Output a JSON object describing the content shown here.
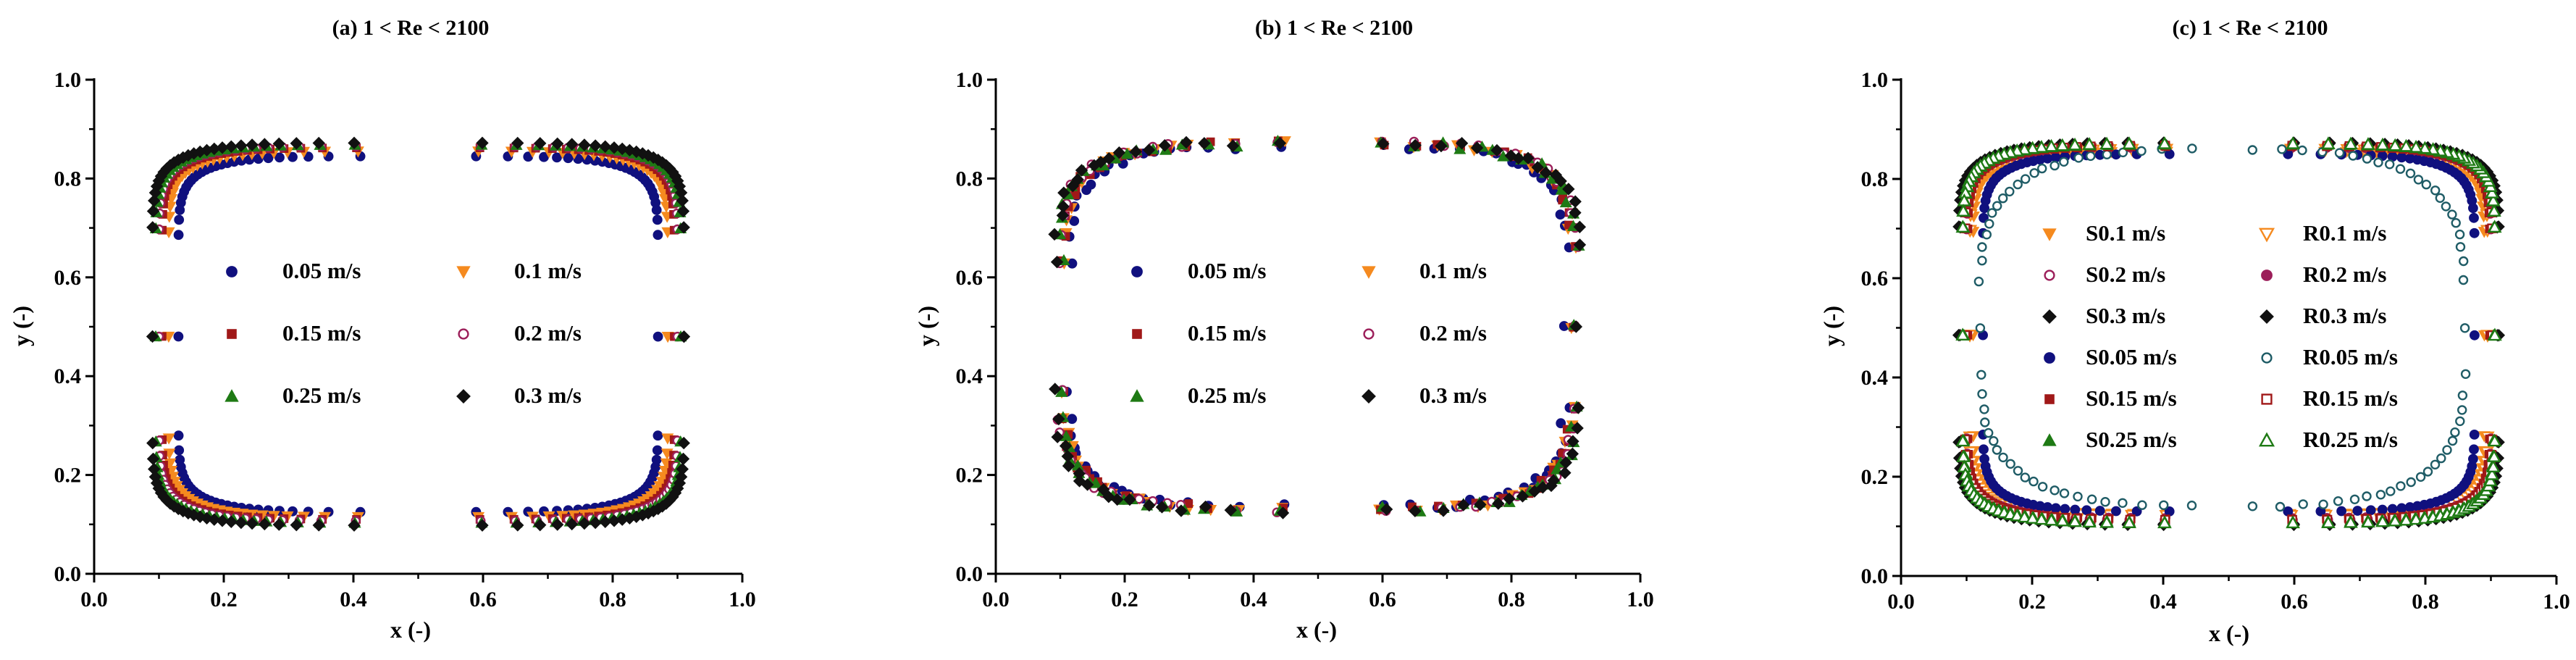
{
  "colors": {
    "navy": "#10107e",
    "orange": "#f58a1f",
    "purple": "#9c1f5a",
    "darkred": "#a01818",
    "green": "#1e7a14",
    "black": "#111111",
    "teal": "#1f5c66"
  },
  "chart_data": [
    {
      "type": "scatter",
      "title": "(a) 1 < Re < 2100",
      "xlabel": "x (-)",
      "ylabel": "y (-)",
      "xlim": [
        0.0,
        1.0
      ],
      "ylim": [
        0.0,
        1.0
      ],
      "xticks": [
        "0.0",
        "0.2",
        "0.4",
        "0.6",
        "0.8",
        "1.0"
      ],
      "yticks": [
        "0.0",
        "0.2",
        "0.4",
        "0.6",
        "0.8",
        "1.0"
      ],
      "legend_position": "center",
      "legend_columns": 2,
      "series": [
        {
          "name": "0.05 m/s",
          "marker": "circle",
          "filled": true,
          "color": "navy",
          "shape": {
            "cx": 0.5,
            "cy": 0.48,
            "ax": 0.37,
            "ay_top": 0.365,
            "ay_bottom": 0.355,
            "n_x": 5,
            "n_y": 10
          },
          "points": 110
        },
        {
          "name": "0.1 m/s",
          "marker": "triangle-down",
          "filled": true,
          "color": "orange",
          "shape": {
            "cx": 0.5,
            "cy": 0.48,
            "ax": 0.385,
            "ay_top": 0.375,
            "ay_bottom": 0.365,
            "n_x": 5,
            "n_y": 10
          },
          "points": 110
        },
        {
          "name": "0.15 m/s",
          "marker": "square",
          "filled": true,
          "color": "darkred",
          "shape": {
            "cx": 0.5,
            "cy": 0.48,
            "ax": 0.395,
            "ay_top": 0.382,
            "ay_bottom": 0.37,
            "n_x": 5,
            "n_y": 10
          },
          "points": 110
        },
        {
          "name": "0.2 m/s",
          "marker": "circle",
          "filled": false,
          "color": "purple",
          "shape": {
            "cx": 0.5,
            "cy": 0.48,
            "ax": 0.4,
            "ay_top": 0.385,
            "ay_bottom": 0.373,
            "n_x": 5,
            "n_y": 10
          },
          "points": 110
        },
        {
          "name": "0.25 m/s",
          "marker": "triangle-up",
          "filled": true,
          "color": "green",
          "shape": {
            "cx": 0.5,
            "cy": 0.48,
            "ax": 0.405,
            "ay_top": 0.388,
            "ay_bottom": 0.377,
            "n_x": 5,
            "n_y": 10
          },
          "points": 110
        },
        {
          "name": "0.3 m/s",
          "marker": "diamond",
          "filled": true,
          "color": "black",
          "shape": {
            "cx": 0.5,
            "cy": 0.48,
            "ax": 0.41,
            "ay_top": 0.392,
            "ay_bottom": 0.382,
            "n_x": 5,
            "n_y": 10
          },
          "points": 110
        }
      ]
    },
    {
      "type": "scatter",
      "title": "(b) 1 < Re < 2100",
      "xlabel": "x (-)",
      "ylabel": "y (-)",
      "xlim": [
        0.0,
        1.0
      ],
      "ylim": [
        0.0,
        1.0
      ],
      "xticks": [
        "0.0",
        "0.2",
        "0.4",
        "0.6",
        "0.8",
        "1.0"
      ],
      "yticks": [
        "0.0",
        "0.2",
        "0.4",
        "0.6",
        "0.8",
        "1.0"
      ],
      "legend_position": "center",
      "legend_columns": 2,
      "series": [
        {
          "name": "0.05 m/s",
          "marker": "circle",
          "filled": true,
          "color": "navy",
          "shape": {
            "cx": 0.5,
            "cy": 0.5,
            "ax": 0.385,
            "ay_top": 0.365,
            "ay_bottom": 0.365,
            "n_x": 4,
            "n_y": 6,
            "jitter": 0.012
          },
          "points": 75
        },
        {
          "name": "0.1 m/s",
          "marker": "triangle-down",
          "filled": true,
          "color": "orange",
          "shape": {
            "cx": 0.5,
            "cy": 0.5,
            "ax": 0.395,
            "ay_top": 0.37,
            "ay_bottom": 0.37,
            "n_x": 4,
            "n_y": 6,
            "jitter": 0.012
          },
          "points": 75
        },
        {
          "name": "0.15 m/s",
          "marker": "square",
          "filled": true,
          "color": "darkred",
          "shape": {
            "cx": 0.5,
            "cy": 0.5,
            "ax": 0.395,
            "ay_top": 0.372,
            "ay_bottom": 0.368,
            "n_x": 4,
            "n_y": 6,
            "jitter": 0.012
          },
          "points": 75
        },
        {
          "name": "0.2 m/s",
          "marker": "circle",
          "filled": false,
          "color": "purple",
          "shape": {
            "cx": 0.5,
            "cy": 0.5,
            "ax": 0.4,
            "ay_top": 0.372,
            "ay_bottom": 0.37,
            "n_x": 4,
            "n_y": 6,
            "jitter": 0.012
          },
          "points": 75
        },
        {
          "name": "0.25 m/s",
          "marker": "triangle-up",
          "filled": true,
          "color": "green",
          "shape": {
            "cx": 0.5,
            "cy": 0.5,
            "ax": 0.4,
            "ay_top": 0.37,
            "ay_bottom": 0.37,
            "n_x": 4,
            "n_y": 6,
            "jitter": 0.012
          },
          "points": 75
        },
        {
          "name": "0.3 m/s",
          "marker": "diamond",
          "filled": true,
          "color": "black",
          "shape": {
            "cx": 0.5,
            "cy": 0.5,
            "ax": 0.405,
            "ay_top": 0.372,
            "ay_bottom": 0.372,
            "n_x": 4,
            "n_y": 6,
            "jitter": 0.012
          },
          "points": 75
        }
      ]
    },
    {
      "type": "scatter",
      "title": "(c) 1 < Re < 2100",
      "xlabel": "x (-)",
      "ylabel": "y (-)",
      "xlim": [
        0.0,
        1.0
      ],
      "ylim": [
        0.0,
        1.0
      ],
      "xticks": [
        "0.0",
        "0.2",
        "0.4",
        "0.6",
        "0.8",
        "1.0"
      ],
      "yticks": [
        "0.0",
        "0.2",
        "0.4",
        "0.6",
        "0.8",
        "1.0"
      ],
      "legend_position": "center",
      "legend_columns": 2,
      "series": [
        {
          "name": "S0.1 m/s",
          "marker": "triangle-down",
          "filled": true,
          "color": "orange",
          "shape": {
            "cx": 0.5,
            "cy": 0.485,
            "ax": 0.39,
            "ay_top": 0.37,
            "ay_bottom": 0.36,
            "n_x": 5,
            "n_y": 10
          },
          "points": 110
        },
        {
          "name": "R0.1 m/s",
          "marker": "triangle-down",
          "filled": false,
          "color": "orange",
          "shape": {
            "cx": 0.5,
            "cy": 0.485,
            "ax": 0.395,
            "ay_top": 0.375,
            "ay_bottom": 0.363,
            "n_x": 5,
            "n_y": 10
          },
          "points": 110
        },
        {
          "name": "S0.2 m/s",
          "marker": "circle",
          "filled": false,
          "color": "purple",
          "shape": {
            "cx": 0.5,
            "cy": 0.485,
            "ax": 0.4,
            "ay_top": 0.378,
            "ay_bottom": 0.368,
            "n_x": 5,
            "n_y": 10
          },
          "points": 110
        },
        {
          "name": "R0.2 m/s",
          "marker": "circle",
          "filled": true,
          "color": "purple",
          "shape": {
            "cx": 0.5,
            "cy": 0.485,
            "ax": 0.405,
            "ay_top": 0.382,
            "ay_bottom": 0.372,
            "n_x": 5,
            "n_y": 10
          },
          "points": 110
        },
        {
          "name": "S0.3 m/s",
          "marker": "diamond",
          "filled": true,
          "color": "black",
          "shape": {
            "cx": 0.5,
            "cy": 0.485,
            "ax": 0.41,
            "ay_top": 0.386,
            "ay_bottom": 0.38,
            "n_x": 5,
            "n_y": 10
          },
          "points": 110
        },
        {
          "name": "R0.3 m/s",
          "marker": "diamond",
          "filled": true,
          "color": "black",
          "shape": {
            "cx": 0.5,
            "cy": 0.485,
            "ax": 0.412,
            "ay_top": 0.388,
            "ay_bottom": 0.382,
            "n_x": 5,
            "n_y": 10
          },
          "points": 110
        },
        {
          "name": "S0.05 m/s",
          "marker": "circle",
          "filled": true,
          "color": "navy",
          "shape": {
            "cx": 0.5,
            "cy": 0.485,
            "ax": 0.375,
            "ay_top": 0.365,
            "ay_bottom": 0.355,
            "n_x": 5,
            "n_y": 10
          },
          "points": 110
        },
        {
          "name": "R0.05 m/s",
          "marker": "circle",
          "filled": false,
          "color": "teal",
          "shape": {
            "cx": 0.49,
            "cy": 0.5,
            "ax": 0.37,
            "ay_top": 0.36,
            "ay_bottom": 0.36,
            "n_x": 3.2,
            "n_y": 4,
            "jitter": 0.004
          },
          "points": 90
        },
        {
          "name": "S0.15 m/s",
          "marker": "square",
          "filled": true,
          "color": "darkred",
          "shape": {
            "cx": 0.5,
            "cy": 0.485,
            "ax": 0.398,
            "ay_top": 0.38,
            "ay_bottom": 0.37,
            "n_x": 5,
            "n_y": 10
          },
          "points": 110
        },
        {
          "name": "R0.15 m/s",
          "marker": "square",
          "filled": false,
          "color": "darkred",
          "shape": {
            "cx": 0.5,
            "cy": 0.485,
            "ax": 0.402,
            "ay_top": 0.382,
            "ay_bottom": 0.372,
            "n_x": 5,
            "n_y": 10
          },
          "points": 110
        },
        {
          "name": "S0.25 m/s",
          "marker": "triangle-up",
          "filled": true,
          "color": "green",
          "shape": {
            "cx": 0.5,
            "cy": 0.485,
            "ax": 0.404,
            "ay_top": 0.384,
            "ay_bottom": 0.376,
            "n_x": 5,
            "n_y": 10
          },
          "points": 110
        },
        {
          "name": "R0.25 m/s",
          "marker": "triangle-up",
          "filled": false,
          "color": "green",
          "shape": {
            "cx": 0.5,
            "cy": 0.485,
            "ax": 0.406,
            "ay_top": 0.386,
            "ay_bottom": 0.378,
            "n_x": 5,
            "n_y": 10
          },
          "points": 110
        }
      ]
    }
  ]
}
